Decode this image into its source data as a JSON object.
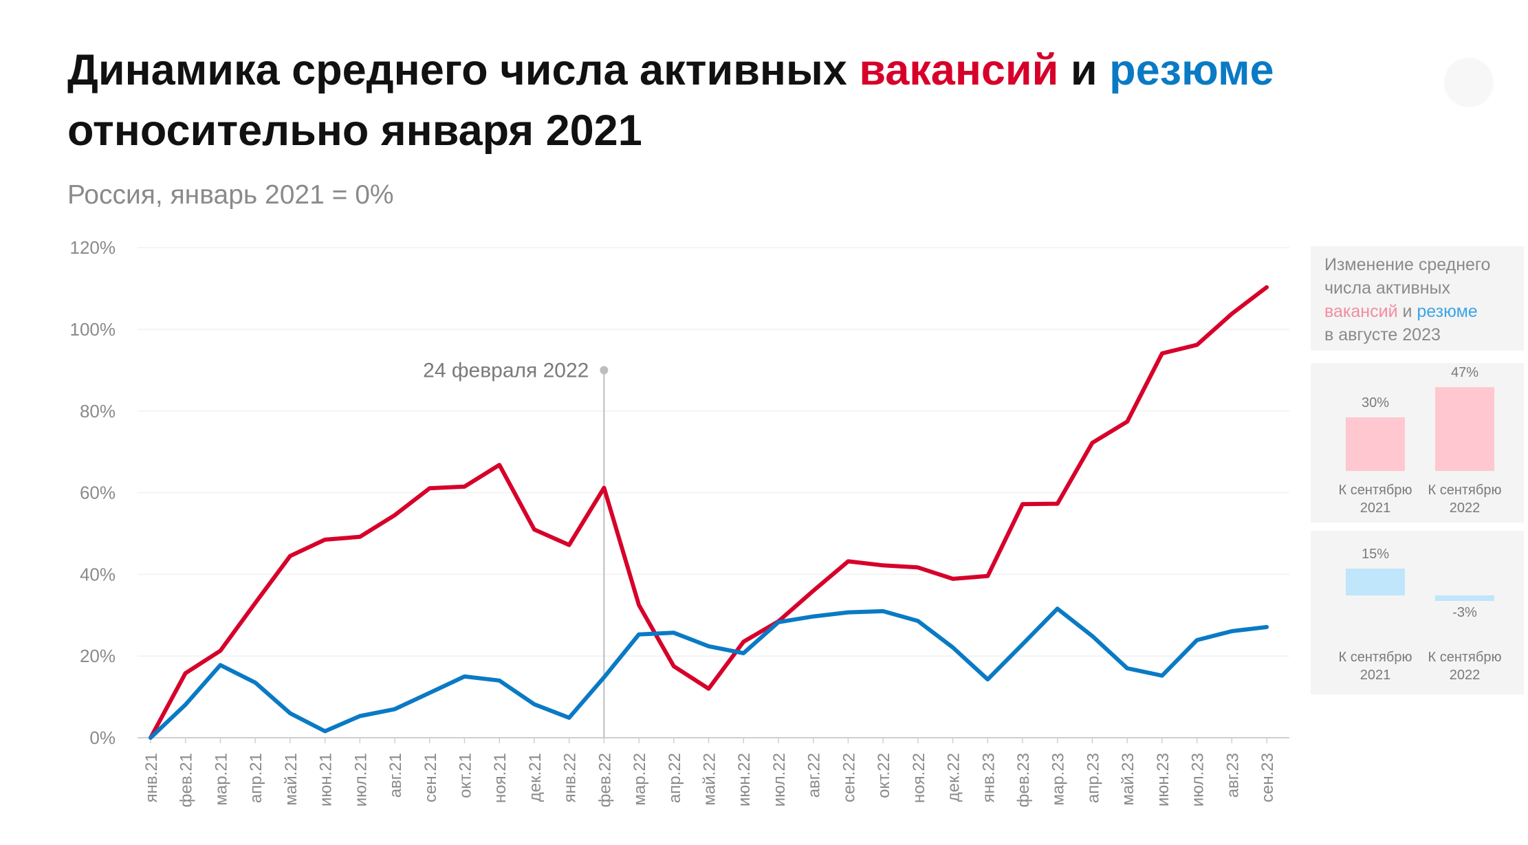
{
  "title": {
    "part1": "Динамика среднего числа активных ",
    "vac": "вакансий",
    "mid": " и ",
    "res": "резюме",
    "line2": "относительно января 2021"
  },
  "subtitle": "Россия, январь 2021 = 0%",
  "colors": {
    "vacancies": "#d6002a",
    "resumes": "#0a7ac4",
    "vac_light": "#ffc7cf",
    "res_light": "#bfe6fb",
    "annotation": "#bdbdbd"
  },
  "chart_data": {
    "type": "line",
    "x": [
      "янв.21",
      "фев.21",
      "мар.21",
      "апр.21",
      "май.21",
      "июн.21",
      "июл.21",
      "авг.21",
      "сен.21",
      "окт.21",
      "ноя.21",
      "дек.21",
      "янв.22",
      "фев.22",
      "мар.22",
      "апр.22",
      "май.22",
      "июн.22",
      "июл.22",
      "авг.22",
      "сен.22",
      "окт.22",
      "ноя.22",
      "дек.22",
      "янв.23",
      "фев.23",
      "мар.23",
      "апр.23",
      "май.23",
      "июн.23",
      "июл.23",
      "авг.23",
      "сен.23"
    ],
    "series": [
      {
        "key": "vacancies",
        "values": [
          0,
          15.8,
          21.3,
          33,
          44.5,
          48.5,
          49.2,
          54.5,
          61.1,
          61.5,
          66.8,
          51,
          47.2,
          61.2,
          32.5,
          17.5,
          12,
          23.5,
          28.5,
          36,
          43.2,
          42.2,
          41.7,
          38.9,
          39.6,
          57.2,
          57.3,
          72.2,
          77.4,
          94.1,
          96.2,
          103.8,
          110.3
        ]
      },
      {
        "key": "resumes",
        "values": [
          0,
          8.1,
          17.8,
          13.5,
          6,
          1.6,
          5.3,
          7,
          11,
          15,
          14,
          8.2,
          4.9,
          14.8,
          25.3,
          25.7,
          22.4,
          20.7,
          28.3,
          29.7,
          30.7,
          31,
          28.6,
          22.1,
          14.3,
          22.9,
          31.6,
          24.9,
          17,
          15.2,
          23.9,
          26.1,
          27.1
        ]
      }
    ],
    "yticks": [
      "0%",
      "20%",
      "40%",
      "60%",
      "80%",
      "100%",
      "120%"
    ],
    "ylim": [
      0,
      120
    ],
    "grid": true,
    "annotation": {
      "label": "24 февраля 2022",
      "x_index": 13,
      "y": 90
    }
  },
  "side_panel": {
    "title_line1": "Изменение среднего",
    "title_line2": "числа активных",
    "vac": "вакансий",
    "and": " и ",
    "res": "резюме",
    "title_line4": "в августе 2023",
    "vacancies": [
      {
        "value": 30,
        "label": "30%",
        "cat1": "К сентябрю",
        "cat2": "2021"
      },
      {
        "value": 47,
        "label": "47%",
        "cat1": "К сентябрю",
        "cat2": "2022"
      }
    ],
    "resumes": [
      {
        "value": 15,
        "label": "15%",
        "cat1": "К сентябрю",
        "cat2": "2021"
      },
      {
        "value": -3,
        "label": "-3%",
        "cat1": "К сентябрю",
        "cat2": "2022"
      }
    ]
  }
}
